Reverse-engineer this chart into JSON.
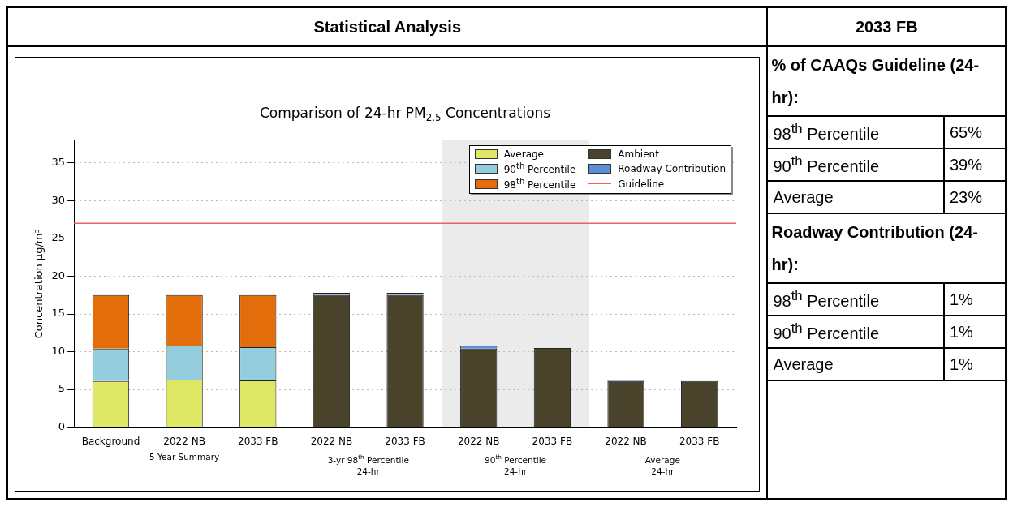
{
  "chart_data": [
    {
      "type": "bar",
      "title": "Statistical Analysis",
      "subtitle": "Comparison of 24-hr PM$_{2.5}$ Concentrations",
      "ylabel": "Concentration µg/m³",
      "categories": [
        "Background",
        "2022 NB",
        "2033 FB",
        "2022 NB",
        "2033 FB",
        "2022 NB",
        "2033 FB",
        "2022 NB",
        "2033 FB"
      ],
      "stacked": true,
      "series": [
        {
          "name": "Average",
          "color": "#dfe865",
          "values": [
            6.1,
            6.3,
            6.2,
            null,
            null,
            null,
            null,
            null,
            null
          ]
        },
        {
          "name": "90$^{th}$ Percentile",
          "color": "#94cddd",
          "values": [
            4.3,
            4.5,
            4.4,
            null,
            null,
            null,
            null,
            null,
            null
          ]
        },
        {
          "name": "98$^{th}$ Percentile",
          "color": "#e36c0b",
          "values": [
            7.1,
            6.7,
            6.9,
            null,
            null,
            null,
            null,
            null,
            null
          ]
        },
        {
          "name": "Ambient",
          "color": "#4a432c",
          "values": [
            null,
            null,
            null,
            17.5,
            17.5,
            10.4,
            10.5,
            6.1,
            6.1
          ]
        },
        {
          "name": "Roadway Contribution",
          "color": "#5a8fd6",
          "values": [
            null,
            null,
            null,
            0.3,
            0.3,
            0.4,
            null,
            0.2,
            null
          ]
        }
      ],
      "ylim": [
        0,
        38
      ],
      "yticks": [
        0,
        5,
        10,
        15,
        20,
        25,
        30,
        35
      ],
      "grid": "y",
      "legend": "top right",
      "ref_lines": [
        {
          "axis": "y",
          "value": 27,
          "label": "Guideline",
          "color": "#f06060"
        }
      ],
      "annotations": [
        "5 Year Summary",
        "3-yr 98$^{th}$ Percentile\n24-hr",
        "90$^{th}$ Percentile\n24-hr",
        "Average\n24-hr"
      ]
    },
    {
      "type": "other",
      "title": "2033 FB",
      "annotations": [
        "% of CAAQs Guideline (24-hr):",
        "Roadway Contribution (24-hr):"
      ],
      "categories": [
        "98$^{th}$ Percentile",
        "90$^{th}$ Percentile",
        "Average",
        "98$^{th}$ Percentile",
        "90$^{th}$ Percentile",
        "Average"
      ],
      "value_labels": [
        "65%",
        "39%",
        "23%",
        "1%",
        "1%",
        "1%"
      ]
    }
  ]
}
